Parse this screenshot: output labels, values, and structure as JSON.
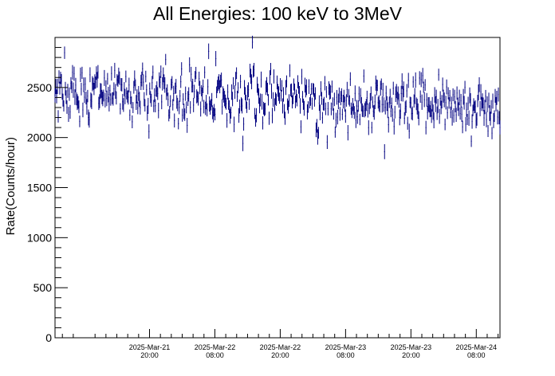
{
  "chart_data": {
    "type": "scatter",
    "title": "All Energies:  100 keV to 3MeV",
    "ylabel": "Rate(Counts/hour)",
    "xlabel": "",
    "ylim": [
      0,
      3000
    ],
    "y_ticks": [
      0,
      500,
      1000,
      1500,
      2000,
      2500
    ],
    "x_range_hours": [
      -17.35,
      64.35
    ],
    "x_ticks": [
      {
        "hours": 0,
        "date": "2025-Mar-21",
        "time": "20:00"
      },
      {
        "hours": 12,
        "date": "2025-Mar-22",
        "time": "08:00"
      },
      {
        "hours": 24,
        "date": "2025-Mar-22",
        "time": "20:00"
      },
      {
        "hours": 36,
        "date": "2025-Mar-23",
        "time": "08:00"
      },
      {
        "hours": 48,
        "date": "2025-Mar-23",
        "time": "20:00"
      },
      {
        "hours": 60,
        "date": "2025-Mar-24",
        "time": "08:00"
      }
    ],
    "series": [
      {
        "color": "#000080",
        "points": 560,
        "mean_start": 2460,
        "mean_end": 2300,
        "spread": 120,
        "error_bar": 55
      }
    ],
    "grid": false
  }
}
